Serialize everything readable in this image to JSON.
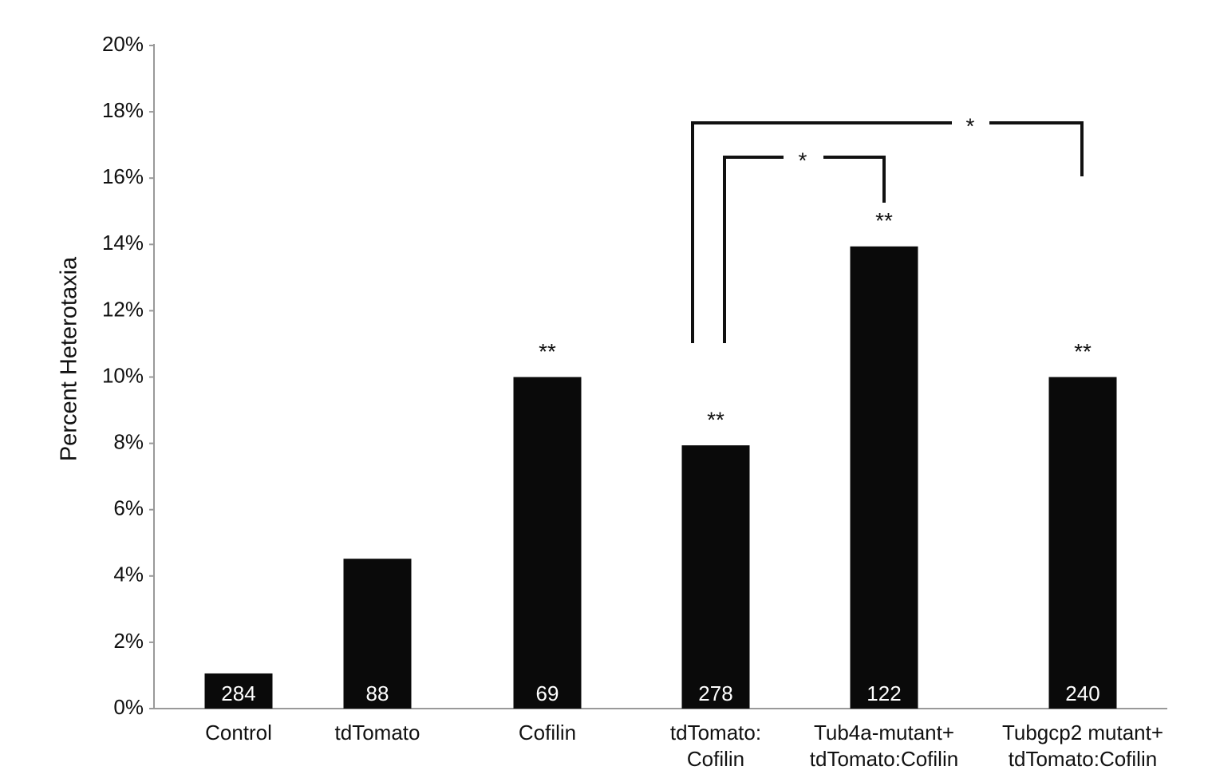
{
  "chart_data": {
    "type": "bar",
    "y_label": "Percent Heterotaxia",
    "categories": [
      "Control",
      "tdTomato",
      "Cofilin",
      "tdTomato:\nCofilin",
      "Tub4a-mutant+\ntdTomato:Cofilin",
      "Tubgcp2 mutant+\ntdTomato:Cofilin"
    ],
    "values": [
      1.06,
      4.52,
      10.0,
      7.94,
      13.94,
      10.0
    ],
    "counts": [
      284,
      88,
      69,
      278,
      122,
      240
    ],
    "significance": [
      null,
      null,
      "**",
      "**",
      "**",
      "**"
    ],
    "comparisons": [
      "*",
      "*"
    ],
    "color": "#0a0a0a",
    "ylim": [
      0,
      20
    ],
    "yticks": [
      {
        "value": 0,
        "label": "0%"
      },
      {
        "value": 2,
        "label": "2%"
      },
      {
        "value": 4,
        "label": "4%"
      },
      {
        "value": 6,
        "label": "6%"
      },
      {
        "value": 8,
        "label": "8%"
      },
      {
        "value": 10,
        "label": "10%"
      },
      {
        "value": 12,
        "label": "12%"
      },
      {
        "value": 14,
        "label": "14%"
      },
      {
        "value": 16,
        "label": "16%"
      },
      {
        "value": 18,
        "label": "18%"
      },
      {
        "value": 20,
        "label": "20%"
      }
    ],
    "grid": false
  }
}
